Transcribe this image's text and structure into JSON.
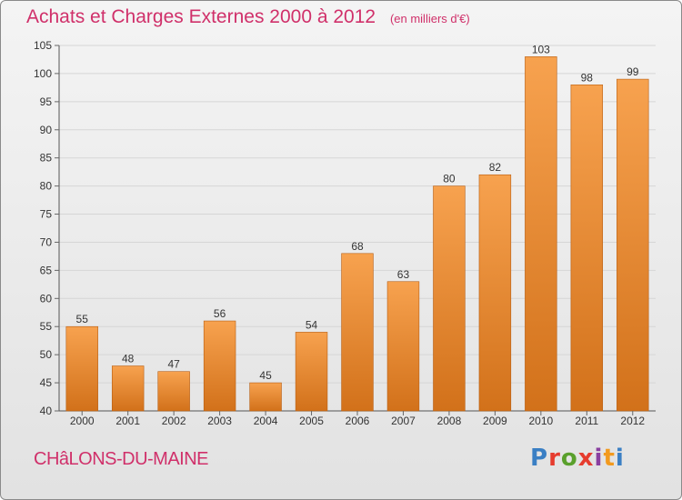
{
  "header": {
    "title": "Achats et Charges Externes 2000 à 2012",
    "subtitle": "(en milliers d'€)"
  },
  "footer": {
    "commune": "CHâLONS-DU-MAINE",
    "logo": {
      "text": "Proxiti",
      "letter_colors": [
        "#3a7fc4",
        "#e63c2e",
        "#5aa02c",
        "#e63c2e",
        "#8a3fa0",
        "#f29a1f",
        "#3a7fc4"
      ]
    }
  },
  "chart_data": {
    "type": "bar",
    "categories": [
      "2000",
      "2001",
      "2002",
      "2003",
      "2004",
      "2005",
      "2006",
      "2007",
      "2008",
      "2009",
      "2010",
      "2011",
      "2012"
    ],
    "values": [
      55,
      48,
      47,
      56,
      45,
      54,
      68,
      63,
      80,
      82,
      103,
      98,
      99
    ],
    "ylim": [
      40,
      105
    ],
    "yticks": [
      40,
      45,
      50,
      55,
      60,
      65,
      70,
      75,
      80,
      85,
      90,
      95,
      100,
      105
    ],
    "grid": true,
    "bar_color_top": "#f7a24f",
    "bar_color_bottom": "#d2711a",
    "bar_edge": "#b85e12"
  }
}
